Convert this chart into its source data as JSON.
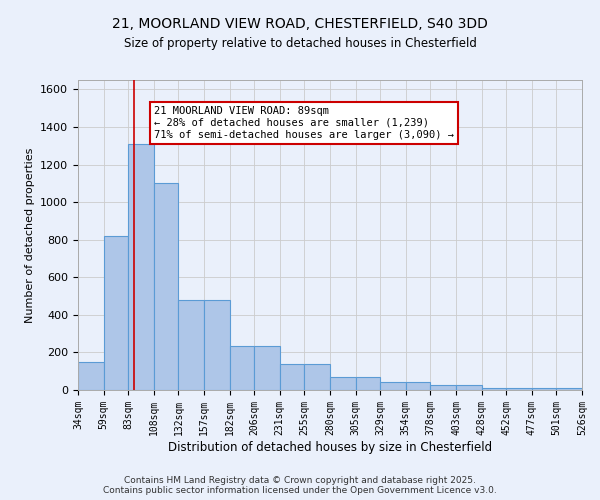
{
  "title_line1": "21, MOORLAND VIEW ROAD, CHESTERFIELD, S40 3DD",
  "title_line2": "Size of property relative to detached houses in Chesterfield",
  "xlabel": "Distribution of detached houses by size in Chesterfield",
  "ylabel": "Number of detached properties",
  "bar_edges": [
    34,
    59,
    83,
    108,
    132,
    157,
    182,
    206,
    231,
    255,
    280,
    305,
    329,
    354,
    378,
    403,
    428,
    452,
    477,
    501,
    526
  ],
  "bar_heights": [
    150,
    820,
    1310,
    1100,
    480,
    480,
    235,
    235,
    140,
    140,
    70,
    70,
    40,
    40,
    25,
    25,
    10,
    10,
    10,
    10
  ],
  "bar_color": "#aec6e8",
  "bar_edgecolor": "#5b9bd5",
  "bar_linewidth": 0.8,
  "grid_color": "#cccccc",
  "background_color": "#eaf0fb",
  "property_size": 89,
  "red_line_color": "#cc0000",
  "annotation_text": "21 MOORLAND VIEW ROAD: 89sqm\n← 28% of detached houses are smaller (1,239)\n71% of semi-detached houses are larger (3,090) →",
  "annotation_box_color": "#ffffff",
  "annotation_border_color": "#cc0000",
  "ylim": [
    0,
    1650
  ],
  "yticks": [
    0,
    200,
    400,
    600,
    800,
    1000,
    1200,
    1400,
    1600
  ],
  "footer_line1": "Contains HM Land Registry data © Crown copyright and database right 2025.",
  "footer_line2": "Contains public sector information licensed under the Open Government Licence v3.0."
}
